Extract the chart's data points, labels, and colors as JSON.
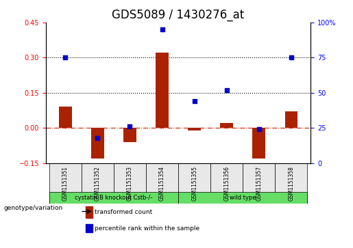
{
  "title": "GDS5089 / 1430276_at",
  "samples": [
    "GSM1151351",
    "GSM1151352",
    "GSM1151353",
    "GSM1151354",
    "GSM1151355",
    "GSM1151356",
    "GSM1151357",
    "GSM1151358"
  ],
  "transformed_count": [
    0.09,
    -0.13,
    -0.06,
    0.32,
    -0.01,
    0.02,
    -0.13,
    0.07
  ],
  "percentile_rank": [
    0.75,
    0.18,
    0.26,
    0.95,
    0.44,
    0.52,
    0.24,
    0.75
  ],
  "ylim_left": [
    -0.15,
    0.45
  ],
  "ylim_right": [
    0,
    100
  ],
  "yticks_left": [
    -0.15,
    0.0,
    0.15,
    0.3,
    0.45
  ],
  "yticks_right": [
    0,
    25,
    50,
    75,
    100
  ],
  "hlines": [
    0.15,
    0.3
  ],
  "bar_color": "#aa2200",
  "dot_color": "#0000cc",
  "zero_line_color": "#cc2200",
  "grid_line_color": "#000000",
  "group1_label": "cystatin B knockout Cstb-/-",
  "group2_label": "wild type",
  "group1_indices": [
    0,
    1,
    2,
    3
  ],
  "group2_indices": [
    4,
    5,
    6,
    7
  ],
  "group_color": "#66dd66",
  "group_label_prefix": "genotype/variation",
  "legend_bar_label": "transformed count",
  "legend_dot_label": "percentile rank within the sample",
  "bar_width": 0.4,
  "title_fontsize": 12,
  "tick_fontsize": 7,
  "label_fontsize": 8,
  "bg_color": "#e8e8e8"
}
